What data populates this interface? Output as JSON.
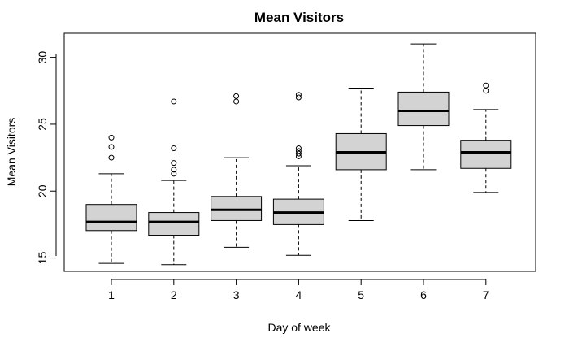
{
  "chart_data": {
    "type": "box",
    "title": "Mean Visitors",
    "xlabel": "Day of week",
    "ylabel": "Mean Visitors",
    "categories": [
      "1",
      "2",
      "3",
      "4",
      "5",
      "6",
      "7"
    ],
    "y_ticks": [
      "15",
      "20",
      "25",
      "30"
    ],
    "ylim": [
      14,
      31.8
    ],
    "box_fill": "#d3d3d3",
    "grid": false,
    "boxes": [
      {
        "category": "1",
        "whisker_low": 14.6,
        "q1": 17.05,
        "median": 17.7,
        "q3": 19.0,
        "whisker_high": 21.3,
        "outliers": [
          22.5,
          23.3,
          24.0
        ]
      },
      {
        "category": "2",
        "whisker_low": 14.5,
        "q1": 16.7,
        "median": 17.7,
        "q3": 18.4,
        "whisker_high": 20.8,
        "outliers": [
          21.3,
          21.6,
          22.1,
          23.2,
          26.7
        ]
      },
      {
        "category": "3",
        "whisker_low": 15.8,
        "q1": 17.8,
        "median": 18.6,
        "q3": 19.6,
        "whisker_high": 22.5,
        "outliers": [
          26.7,
          27.1
        ]
      },
      {
        "category": "4",
        "whisker_low": 15.2,
        "q1": 17.5,
        "median": 18.4,
        "q3": 19.4,
        "whisker_high": 21.9,
        "outliers": [
          22.6,
          22.8,
          23.0,
          23.2,
          27.0,
          27.2
        ]
      },
      {
        "category": "5",
        "whisker_low": 17.8,
        "q1": 21.6,
        "median": 22.9,
        "q3": 24.3,
        "whisker_high": 27.7,
        "outliers": []
      },
      {
        "category": "6",
        "whisker_low": 21.6,
        "q1": 24.9,
        "median": 26.0,
        "q3": 27.4,
        "whisker_high": 31.0,
        "outliers": []
      },
      {
        "category": "7",
        "whisker_low": 19.9,
        "q1": 21.7,
        "median": 22.9,
        "q3": 23.8,
        "whisker_high": 26.1,
        "outliers": [
          27.5,
          27.9
        ]
      }
    ]
  }
}
